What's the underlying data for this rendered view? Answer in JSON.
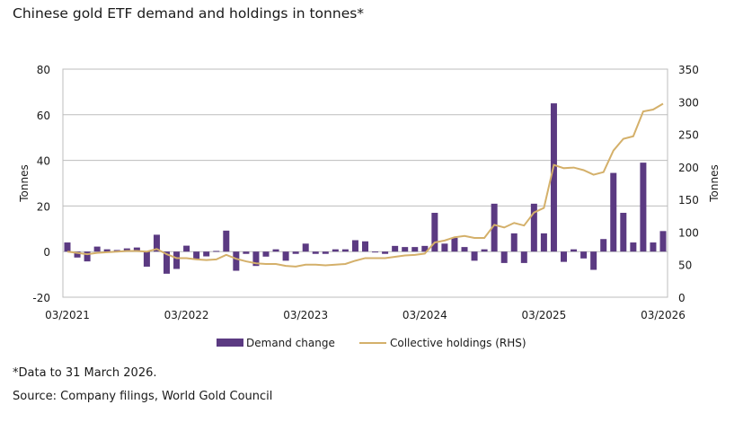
{
  "chart_data": {
    "type": "bar+line",
    "title": "Chinese gold ETF demand and holdings in tonnes*",
    "ylabel": "Tonnes",
    "y2label": "Tonnes",
    "ylim": [
      -20,
      80
    ],
    "y2lim": [
      0,
      350
    ],
    "yticks": [
      "-20",
      "0",
      "20",
      "40",
      "60",
      "80"
    ],
    "y2ticks": [
      "0",
      "50",
      "100",
      "150",
      "200",
      "250",
      "300",
      "350"
    ],
    "xtick_labels": [
      "03/2021",
      "03/2022",
      "03/2023",
      "03/2024",
      "03/2025",
      "03/2026"
    ],
    "grid": true,
    "legend_position": "bottom",
    "series": [
      {
        "name": "Demand change",
        "type": "bar",
        "color": "#5b3a82",
        "values": [
          4,
          -2.6,
          -4.3,
          2.2,
          1,
          0.7,
          1.4,
          1.8,
          -6.6,
          7.4,
          -9.7,
          -7.6,
          2.6,
          -3.4,
          -2.1,
          0.3,
          9.2,
          -8.4,
          -1,
          -6.3,
          -2.2,
          1,
          -4,
          -1,
          3.5,
          -1,
          -1,
          1,
          1,
          5,
          4.5,
          0,
          -1,
          2.5,
          2,
          2,
          2.5,
          17,
          3.5,
          6,
          2,
          -4,
          1,
          21,
          -5,
          8,
          -5,
          21,
          8,
          65,
          -4.5,
          1,
          -3,
          -8,
          5.5,
          34.5,
          17,
          4,
          39,
          4,
          9
        ]
      },
      {
        "name": "Collective holdings (RHS)",
        "type": "line",
        "axis": "right",
        "color": "#d4b06a",
        "values": [
          70,
          68,
          66,
          68,
          69,
          70,
          71,
          71,
          70,
          74,
          66,
          60,
          60,
          58,
          57,
          58,
          65,
          59,
          55,
          52,
          51,
          51,
          48,
          47,
          50,
          50,
          49,
          50,
          51,
          56,
          60,
          60,
          60,
          62,
          64,
          65,
          67,
          84,
          87,
          92,
          94,
          91,
          91,
          111,
          107,
          114,
          110,
          130,
          137,
          203,
          198,
          199,
          195,
          188,
          192,
          225,
          243,
          247,
          285,
          288,
          297
        ]
      }
    ]
  },
  "notes": {
    "footnote": "*Data to 31 March 2026.",
    "source": "Source: Company filings, World Gold Council"
  }
}
